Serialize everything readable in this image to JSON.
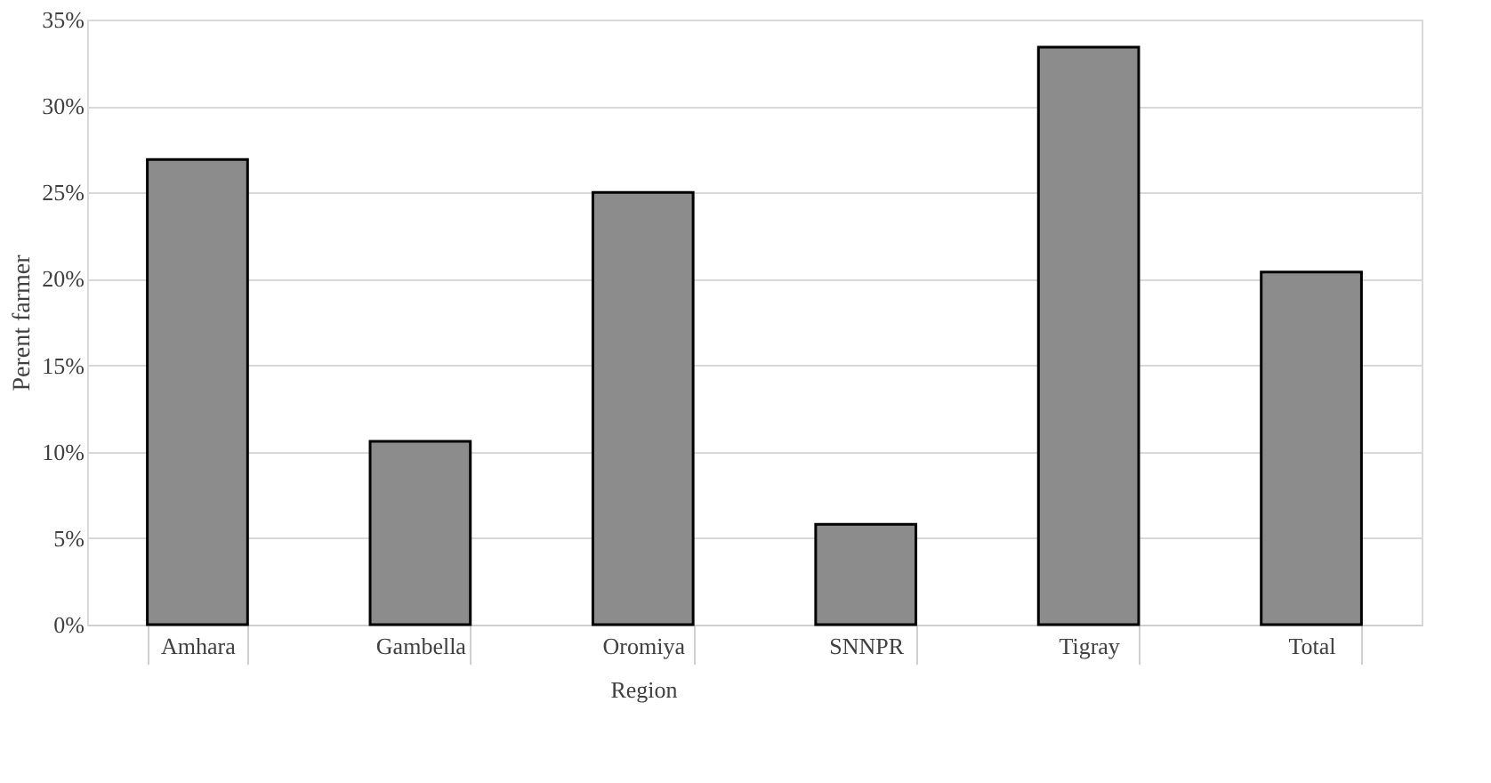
{
  "chart_data": {
    "type": "bar",
    "ylabel": "Perent farmer",
    "xlabel": "Region",
    "categories": [
      "Amhara",
      "Gambella",
      "Oromiya",
      "SNNPR",
      "Tigray",
      "Total"
    ],
    "values": [
      26.9,
      10.6,
      25.0,
      5.8,
      33.4,
      20.4
    ],
    "color": "#8c8c8c",
    "ylim": [
      0,
      35
    ],
    "yticks": [
      {
        "value": 0,
        "label": "0%"
      },
      {
        "value": 5,
        "label": "5%"
      },
      {
        "value": 10,
        "label": "10%"
      },
      {
        "value": 15,
        "label": "15%"
      },
      {
        "value": 20,
        "label": "20%"
      },
      {
        "value": 25,
        "label": "25%"
      },
      {
        "value": 30,
        "label": "30%"
      },
      {
        "value": 35,
        "label": "35%"
      }
    ],
    "grid": "y"
  }
}
